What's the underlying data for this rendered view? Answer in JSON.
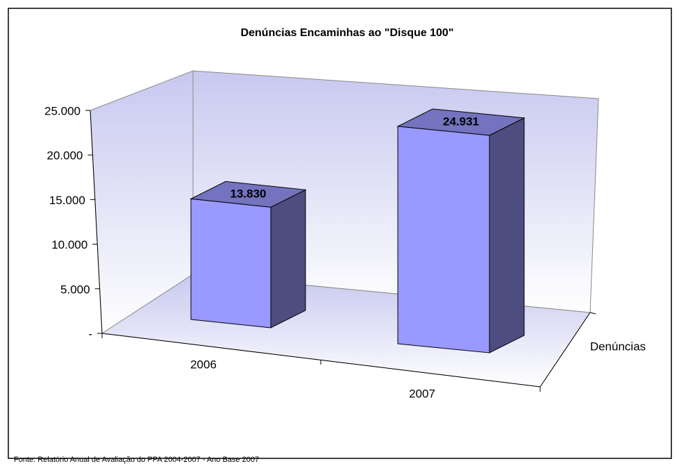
{
  "chart_data": {
    "type": "bar3d",
    "title": "Denúncias Encaminhas ao \"Disque 100\"",
    "categories": [
      "2006",
      "2007"
    ],
    "series": [
      {
        "name": "Denúncias",
        "color": "#9999ff",
        "values": [
          13830,
          24931
        ],
        "value_labels": [
          "13.830",
          "24.931"
        ]
      }
    ],
    "ylim": [
      0,
      25000
    ],
    "yticks": [
      {
        "value": 0,
        "label": "-"
      },
      {
        "value": 5000,
        "label": "5.000"
      },
      {
        "value": 10000,
        "label": "10.000"
      },
      {
        "value": 15000,
        "label": "15.000"
      },
      {
        "value": 20000,
        "label": "20.000"
      },
      {
        "value": 25000,
        "label": "25.000"
      }
    ],
    "source": "Fonte: Relatório Anual de Avaliação do PPA 2004-2007 - Ano Base 2007"
  }
}
